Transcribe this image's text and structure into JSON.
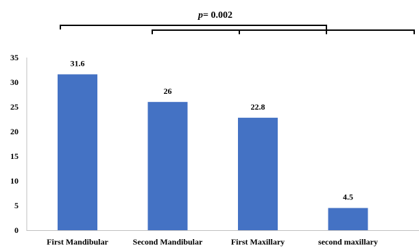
{
  "chart_data": {
    "type": "bar",
    "categories": [
      "First Mandibular",
      "Second Mandibular",
      "First Maxillary",
      "second maxillary"
    ],
    "values": [
      31.6,
      26,
      22.8,
      4.5
    ],
    "data_labels": [
      "31.6",
      "26",
      "22.8",
      "4.5"
    ],
    "ylim": [
      0,
      35
    ],
    "yticks": [
      0,
      5,
      10,
      15,
      20,
      25,
      30,
      35
    ],
    "bar_color": "#4472C4",
    "grid": false,
    "annotation": {
      "p_label": "p",
      "p_value": "= 0.002"
    }
  }
}
